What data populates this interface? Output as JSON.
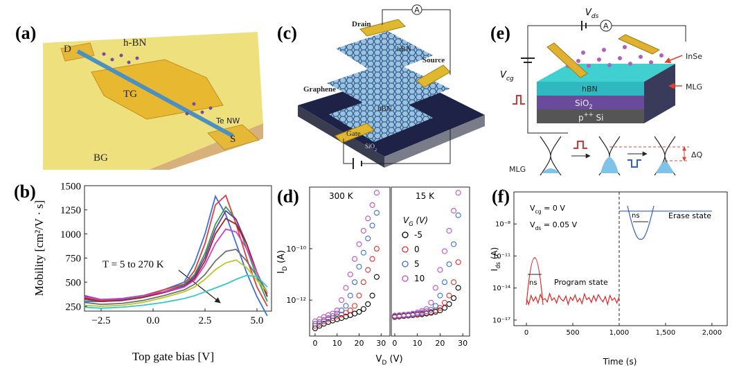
{
  "figure": {
    "panel_labels": [
      "(a)",
      "(b)",
      "(c)",
      "(d)",
      "(e)",
      "(f)"
    ]
  },
  "illustrations": {
    "a": {
      "drain": "D",
      "h_bn": "h-BN",
      "top_gate": "TG",
      "nanowire": "Te NW",
      "source": "S",
      "back_gate": "BG"
    },
    "c": {
      "drain": "Drain",
      "graphene": "Graphene",
      "hbn_top": "hBN",
      "source": "Source",
      "hbn_bottom": "hBN",
      "gate": "Gate",
      "substrate": {
        "text": "SiO",
        "sub": "2"
      },
      "ammeter": "A"
    },
    "e": {
      "vds": {
        "text": "V",
        "sub": "ds"
      },
      "vcg": {
        "text": "V",
        "sub": "cg"
      },
      "ammeter": "A",
      "inse": "InSe",
      "mlg": "MLG",
      "hbn": "hBN",
      "sio2": {
        "text": "SiO",
        "sub": "2"
      },
      "si": {
        "text": "p",
        "sup": "++",
        "after": " Si"
      },
      "band_label": "MLG",
      "delta_q": "ΔQ"
    }
  },
  "chart_data": [
    {
      "type": "line",
      "xlabel": "Top gate bias [V]",
      "ylabel": "Mobility [cm²/V · s]",
      "annotation": "T = 5 to 270 K",
      "x": [
        -3.3,
        -2.5,
        -1.5,
        -0.5,
        0.5,
        1.5,
        2,
        2.5,
        3,
        3.5,
        4,
        4.5,
        5,
        5.5
      ],
      "series": [
        {
          "color": "#3a6fd8",
          "values": [
            300,
            300,
            320,
            350,
            420,
            500,
            700,
            1000,
            1390,
            1200,
            900,
            600,
            350,
            150
          ]
        },
        {
          "color": "#e03c3c",
          "values": [
            340,
            310,
            330,
            360,
            420,
            480,
            620,
            900,
            1300,
            1400,
            1100,
            750,
            450,
            250
          ]
        },
        {
          "color": "#30a050",
          "values": [
            320,
            300,
            310,
            350,
            400,
            470,
            580,
            800,
            1100,
            1280,
            1150,
            850,
            550,
            300
          ]
        },
        {
          "color": "#6a3aa0",
          "values": [
            360,
            320,
            330,
            360,
            400,
            460,
            560,
            760,
            1050,
            1240,
            1150,
            900,
            600,
            350
          ]
        },
        {
          "color": "#a02030",
          "values": [
            330,
            300,
            310,
            340,
            390,
            450,
            540,
            720,
            1000,
            1160,
            1100,
            900,
            600,
            350
          ]
        },
        {
          "color": "#d040c8",
          "values": [
            350,
            320,
            330,
            360,
            400,
            450,
            520,
            680,
            900,
            1050,
            1020,
            850,
            600,
            380
          ]
        },
        {
          "color": "#707070",
          "values": [
            290,
            270,
            280,
            310,
            360,
            420,
            480,
            580,
            720,
            820,
            840,
            720,
            560,
            400
          ]
        },
        {
          "color": "#b8c820",
          "values": [
            260,
            250,
            260,
            290,
            340,
            400,
            450,
            530,
            630,
            700,
            730,
            650,
            520,
            400
          ]
        },
        {
          "color": "#30c8c8",
          "values": [
            240,
            230,
            240,
            260,
            290,
            330,
            360,
            400,
            440,
            480,
            530,
            570,
            560,
            450
          ]
        }
      ],
      "xlim": [
        -3.3,
        5.7
      ],
      "ylim": [
        200,
        1500
      ],
      "xticks": [
        {
          "value": -2.5,
          "label": "−2.5"
        },
        {
          "value": 0,
          "label": "0.0"
        },
        2.5,
        {
          "value": 5,
          "label": "5.0"
        }
      ],
      "yticks": [
        250,
        500,
        750,
        1000,
        1250,
        1500
      ]
    },
    {
      "type": "scatter",
      "title": "300 K",
      "log_y": true,
      "xlabel": {
        "text": "V",
        "sub": "D",
        "after": " (V)"
      },
      "ylabel": {
        "text": "I",
        "sub": "D",
        "after": " (A)"
      },
      "x": [
        0,
        2,
        4,
        6,
        8,
        10,
        12,
        14,
        16,
        18,
        20,
        22,
        24,
        26,
        28
      ],
      "series": [
        {
          "color": "#000000",
          "values": [
            8e-14,
            1e-13,
            1.2e-13,
            1.4e-13,
            1.6e-13,
            1.8e-13,
            2e-13,
            2.3e-13,
            2.6e-13,
            3e-13,
            3.5e-13,
            4.5e-13,
            7e-13,
            1.5e-12,
            8e-12
          ]
        },
        {
          "color": "#e03030",
          "values": [
            1e-13,
            1.2e-13,
            1.5e-13,
            1.8e-13,
            2e-13,
            2.3e-13,
            2.7e-13,
            3.2e-13,
            4e-13,
            6e-13,
            1.5e-12,
            5e-12,
            1.5e-11,
            4e-11,
            1e-10
          ]
        },
        {
          "color": "#3b6fd0",
          "values": [
            1.2e-13,
            1.4e-13,
            1.7e-13,
            2e-13,
            2.4e-13,
            3e-13,
            4e-13,
            6e-13,
            1.5e-12,
            5e-12,
            2e-11,
            7e-11,
            2.5e-10,
            8e-10,
            2.5e-09
          ]
        },
        {
          "color": "#c050c0",
          "values": [
            1.5e-13,
            1.8e-13,
            2.2e-13,
            2.6e-13,
            3e-13,
            4e-13,
            1e-12,
            3e-12,
            1e-11,
            4e-11,
            1.5e-10,
            5e-10,
            1.5e-09,
            5e-09,
            1.5e-08
          ]
        }
      ],
      "xlim": [
        -2.5,
        34
      ],
      "ylim": [
        4e-14,
        2.5e-08
      ],
      "xticks": [
        0,
        10,
        20,
        30
      ],
      "yticks": [
        {
          "value": 1e-12,
          "label": "10⁻¹²"
        },
        {
          "value": 1e-10,
          "label": "10⁻¹⁰"
        }
      ]
    },
    {
      "type": "scatter",
      "title": "15 K",
      "log_y": true,
      "legend": "upper left",
      "legend_title": {
        "text": "V",
        "sub": "G",
        "after": " (V)"
      },
      "x": [
        0,
        2,
        4,
        6,
        8,
        10,
        12,
        14,
        16,
        18,
        20,
        22,
        24,
        26,
        28
      ],
      "series": [
        {
          "name": "-5",
          "color": "#000000",
          "values": [
            2.2e-13,
            2.3e-13,
            2.4e-13,
            2.5e-13,
            2.6e-13,
            2.7e-13,
            2.8e-13,
            3e-13,
            3.2e-13,
            3.5e-13,
            4e-13,
            5e-13,
            7e-13,
            1.2e-12,
            3e-12
          ]
        },
        {
          "name": "0",
          "color": "#e03030",
          "values": [
            2.3e-13,
            2.4e-13,
            2.5e-13,
            2.6e-13,
            2.7e-13,
            2.8e-13,
            3e-13,
            3.2e-13,
            3.5e-13,
            4e-13,
            5e-13,
            8e-13,
            1.5e-12,
            5e-12,
            3e-11
          ]
        },
        {
          "name": "5",
          "color": "#3b6fd0",
          "values": [
            2.4e-13,
            2.5e-13,
            2.6e-13,
            2.7e-13,
            2.8e-13,
            3e-13,
            3.3e-13,
            3.7e-13,
            4.2e-13,
            6e-13,
            1.5e-12,
            5e-12,
            2.5e-11,
            1.5e-10,
            2e-09
          ]
        },
        {
          "name": "10",
          "color": "#c050c0",
          "values": [
            2.5e-13,
            2.6e-13,
            2.7e-13,
            2.8e-13,
            3e-13,
            3.3e-13,
            3.8e-13,
            4.5e-13,
            8e-13,
            3e-12,
            1.5e-11,
            8e-11,
            5e-10,
            3e-09,
            1.5e-08
          ]
        }
      ],
      "xlim": [
        -1.5,
        33
      ],
      "ylim": [
        4e-14,
        2.5e-08
      ],
      "xticks": [
        0,
        10,
        20,
        30
      ]
    },
    {
      "type": "line",
      "log_y": true,
      "xlabel": "Time (s)",
      "ylabel": {
        "text": "I",
        "sub": "ds",
        "after": " (A)"
      },
      "annotations": {
        "vcg": {
          "text": "V",
          "sub": "cg",
          "after": " = 0 V"
        },
        "vds": {
          "text": "V",
          "sub": "ds",
          "after": " = 0.05 V"
        },
        "erase": "Erase state",
        "program": "Program state",
        "pulse_erase": "ns",
        "pulse_program": "ns"
      },
      "vline": 1000,
      "series": [
        {
          "color": "#e02020",
          "x": [
            0,
            25,
            50,
            75,
            100,
            125,
            150,
            175,
            200,
            225,
            250,
            275,
            300,
            325,
            350,
            375,
            400,
            425,
            450,
            475,
            500,
            525,
            550,
            575,
            600,
            625,
            650,
            675,
            700,
            725,
            750,
            775,
            800,
            825,
            850,
            875,
            900,
            925,
            950,
            975,
            1000
          ],
          "values": [
            1e-15,
            3e-16,
            2e-15,
            6e-16,
            1.5e-15,
            4e-16,
            2.5e-15,
            8e-16,
            1e-15,
            5e-16,
            3e-15,
            7e-16,
            1.2e-15,
            4e-16,
            2e-15,
            9e-16,
            6e-16,
            1.8e-15,
            3e-16,
            1.4e-15,
            7e-16,
            2.2e-15,
            5e-16,
            1.1e-15,
            3.5e-16,
            2.8e-15,
            8e-16,
            1.3e-15,
            4.5e-16,
            1.9e-15,
            6e-16,
            2.4e-15,
            1e-15,
            5e-16,
            1.6e-15,
            3e-16,
            2e-15,
            7e-16,
            1.2e-15,
            4e-16,
            1.5e-15
          ]
        },
        {
          "color": "#3060c0",
          "x": [
            1000,
            2000
          ],
          "values": [
            1.6e-07,
            1.6e-07
          ]
        }
      ],
      "xlim": [
        -135,
        2165
      ],
      "ylim": [
        3e-18,
        1e-05
      ],
      "xticks": [
        0,
        500,
        {
          "value": 1000,
          "label": "1,000"
        },
        {
          "value": 1500,
          "label": "1,500"
        },
        {
          "value": 2000,
          "label": "2,000"
        }
      ],
      "yticks": [
        {
          "value": 1e-17,
          "label": "10⁻¹⁷"
        },
        {
          "value": 1e-14,
          "label": "10⁻¹⁴"
        },
        {
          "value": 1e-11,
          "label": "10⁻¹¹"
        },
        {
          "value": 1e-08,
          "label": "10⁻⁸"
        }
      ]
    }
  ]
}
